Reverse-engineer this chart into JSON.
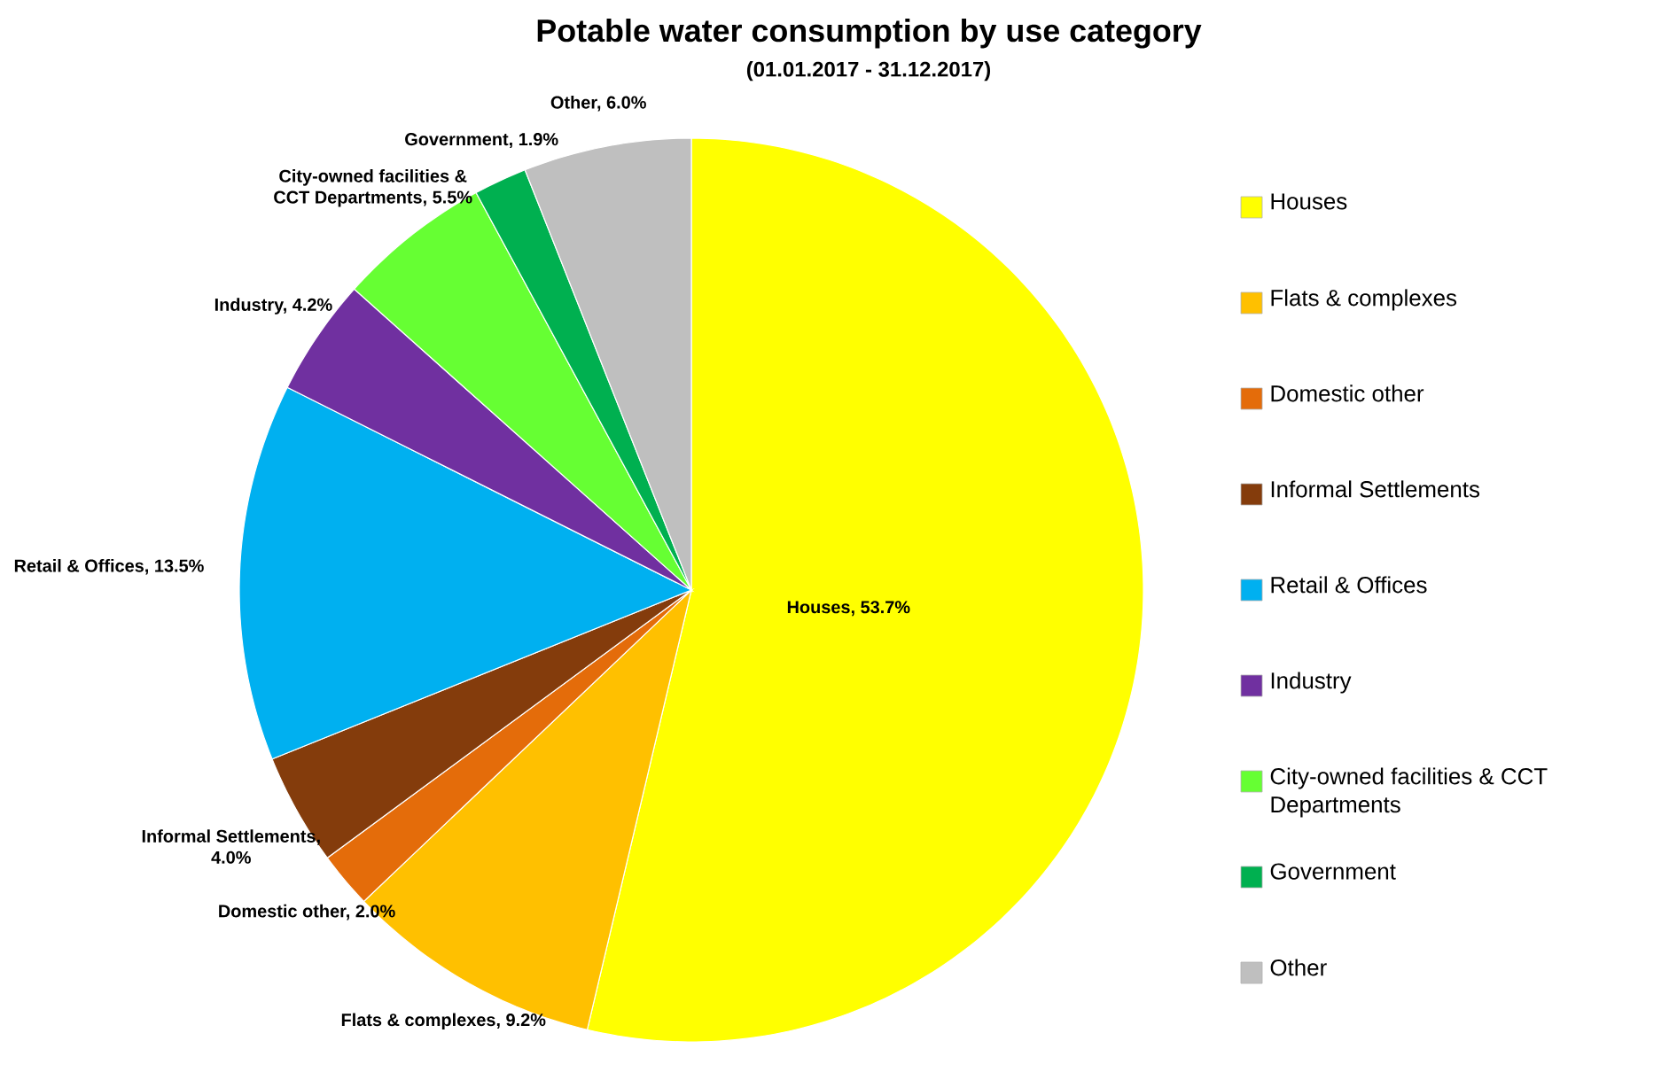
{
  "chart_data": {
    "type": "pie",
    "title": "Potable water consumption by use category",
    "subtitle": "(01.01.2017 - 31.12.2017)",
    "categories": [
      "Houses",
      "Flats & complexes",
      "Domestic other",
      "Informal Settlements",
      "Retail & Offices",
      "Industry",
      "City-owned facilities & CCT Departments",
      "Government",
      "Other"
    ],
    "values": [
      53.7,
      9.2,
      2.0,
      4.0,
      13.5,
      4.2,
      5.5,
      1.9,
      6.0
    ],
    "colors": [
      "#ffff00",
      "#ffc000",
      "#e46c0a",
      "#843c0c",
      "#00b0f0",
      "#7030a0",
      "#66ff33",
      "#00b050",
      "#bfbfbf"
    ],
    "value_labels": [
      "Houses, 53.7%",
      "Flats & complexes, 9.2%",
      "Domestic other, 2.0%",
      "Informal Settlements, 4.0%",
      "Retail & Offices, 13.5%",
      "Industry, 4.2%",
      "City-owned facilities & CCT Departments, 5.5%",
      "Government, 1.9%",
      "Other, 6.0%"
    ],
    "legend": "right"
  }
}
